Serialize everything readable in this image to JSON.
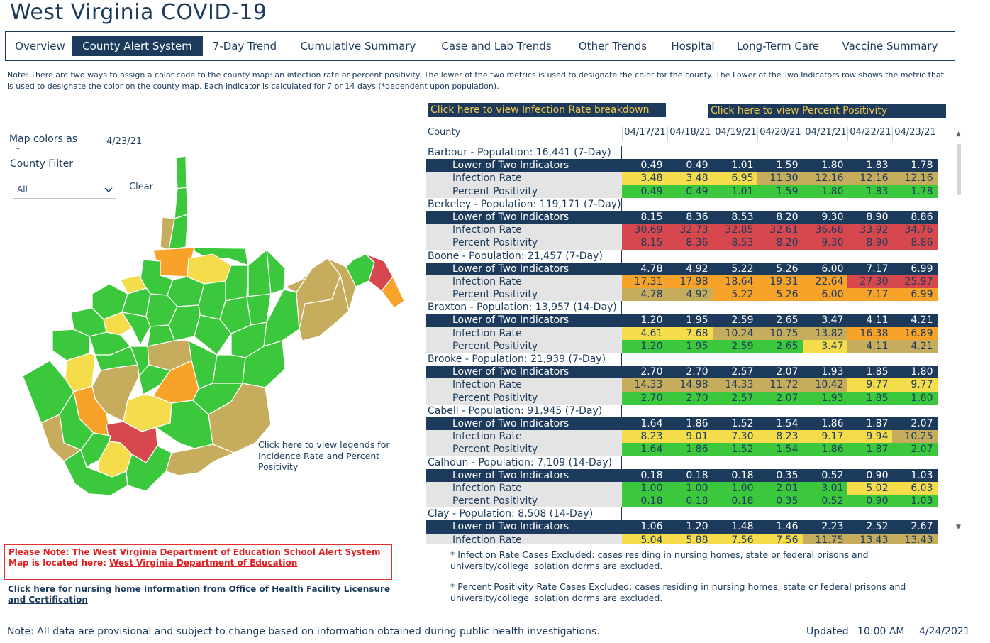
{
  "title": "West Virginia COVID-19",
  "tabs": [
    {
      "label": "Overview",
      "active": false
    },
    {
      "label": "County Alert System",
      "active": true
    },
    {
      "label": "7-Day Trend",
      "active": false
    },
    {
      "label": "Cumulative Summary",
      "active": false
    },
    {
      "label": "Case and Lab Trends",
      "active": false
    },
    {
      "label": "Other Trends",
      "active": false
    },
    {
      "label": "Hospital",
      "active": false
    },
    {
      "label": "Long-Term Care",
      "active": false
    },
    {
      "label": "Vaccine Summary",
      "active": false
    }
  ],
  "note": "Note: There are two ways to assign a color code to the county map: an infection rate or percent positivity. The lower of the two metrics is used to designate the color for the county. The Lower of the Two Indicators row shows the metric that is used to designate the color on the county map. Each indicator is calculated for 7 or 14 days (*dependent upon population).",
  "map_colors_label": "Map colors as of:",
  "map_date": "4/23/21",
  "county_filter_label": "County Filter",
  "county_filter_value": "All",
  "clear_label": "Clear",
  "legend_link": "Click here to view legends for Incidence Rate and Percent Positivity",
  "infection_rate_button": "Click here to view Infection Rate breakdown",
  "percent_positivity_button": "Click here to view Percent Positivity",
  "table": {
    "county_header": "County",
    "dates": [
      "04/17/21",
      "04/18/21",
      "04/19/21",
      "04/20/21",
      "04/21/21",
      "04/22/21",
      "04/23/21"
    ],
    "lower_label": "Lower of Two Indicators",
    "infection_label": "Infection Rate",
    "positivity_label": "Percent Positivity",
    "counties": [
      {
        "name": "Barbour - Population: 16,441 (7-Day)",
        "lower": [
          "0.49",
          "0.49",
          "1.01",
          "1.59",
          "1.80",
          "1.83",
          "1.78"
        ],
        "infection": [
          "3.48",
          "3.48",
          "6.95",
          "11.30",
          "12.16",
          "12.16",
          "12.16"
        ],
        "infection_colors": [
          "yellow",
          "yellow",
          "yellow",
          "khaki",
          "khaki",
          "khaki",
          "khaki"
        ],
        "positivity": [
          "0.49",
          "0.49",
          "1.01",
          "1.59",
          "1.80",
          "1.83",
          "1.78"
        ],
        "positivity_colors": [
          "green",
          "green",
          "green",
          "green",
          "green",
          "green",
          "green"
        ]
      },
      {
        "name": "Berkeley - Population: 119,171 (7-Day)",
        "lower": [
          "8.15",
          "8.36",
          "8.53",
          "8.20",
          "9.30",
          "8.90",
          "8.86"
        ],
        "infection": [
          "30.69",
          "32.73",
          "32.85",
          "32.61",
          "36.68",
          "33.92",
          "34.76"
        ],
        "infection_colors": [
          "red",
          "red",
          "red",
          "red",
          "red",
          "red",
          "red"
        ],
        "positivity": [
          "8.15",
          "8.36",
          "8.53",
          "8.20",
          "9.30",
          "8.90",
          "8.86"
        ],
        "positivity_colors": [
          "red",
          "red",
          "red",
          "red",
          "red",
          "red",
          "red"
        ]
      },
      {
        "name": "Boone - Population: 21,457 (7-Day)",
        "lower": [
          "4.78",
          "4.92",
          "5.22",
          "5.26",
          "6.00",
          "7.17",
          "6.99"
        ],
        "infection": [
          "17.31",
          "17.98",
          "18.64",
          "19.31",
          "22.64",
          "27.30",
          "25.97"
        ],
        "infection_colors": [
          "orange",
          "orange",
          "orange",
          "orange",
          "orange",
          "red",
          "red"
        ],
        "positivity": [
          "4.78",
          "4.92",
          "5.22",
          "5.26",
          "6.00",
          "7.17",
          "6.99"
        ],
        "positivity_colors": [
          "khaki",
          "khaki",
          "orange",
          "orange",
          "orange",
          "orange",
          "orange"
        ]
      },
      {
        "name": "Braxton - Population: 13,957 (14-Day)",
        "lower": [
          "1.20",
          "1.95",
          "2.59",
          "2.65",
          "3.47",
          "4.11",
          "4.21"
        ],
        "infection": [
          "4.61",
          "7.68",
          "10.24",
          "10.75",
          "13.82",
          "16.38",
          "16.89"
        ],
        "infection_colors": [
          "yellow",
          "yellow",
          "khaki",
          "khaki",
          "khaki",
          "orange",
          "orange"
        ],
        "positivity": [
          "1.20",
          "1.95",
          "2.59",
          "2.65",
          "3.47",
          "4.11",
          "4.21"
        ],
        "positivity_colors": [
          "green",
          "green",
          "green",
          "green",
          "yellow",
          "khaki",
          "khaki"
        ]
      },
      {
        "name": "Brooke - Population: 21,939 (7-Day)",
        "lower": [
          "2.70",
          "2.70",
          "2.57",
          "2.07",
          "1.93",
          "1.85",
          "1.80"
        ],
        "infection": [
          "14.33",
          "14.98",
          "14.33",
          "11.72",
          "10.42",
          "9.77",
          "9.77"
        ],
        "infection_colors": [
          "khaki",
          "khaki",
          "khaki",
          "khaki",
          "khaki",
          "yellow",
          "yellow"
        ],
        "positivity": [
          "2.70",
          "2.70",
          "2.57",
          "2.07",
          "1.93",
          "1.85",
          "1.80"
        ],
        "positivity_colors": [
          "green",
          "green",
          "green",
          "green",
          "green",
          "green",
          "green"
        ]
      },
      {
        "name": "Cabell - Population: 91,945 (7-Day)",
        "lower": [
          "1.64",
          "1.86",
          "1.52",
          "1.54",
          "1.86",
          "1.87",
          "2.07"
        ],
        "infection": [
          "8.23",
          "9.01",
          "7.30",
          "8.23",
          "9.17",
          "9.94",
          "10.25"
        ],
        "infection_colors": [
          "yellow",
          "yellow",
          "yellow",
          "yellow",
          "yellow",
          "yellow",
          "khaki"
        ],
        "positivity": [
          "1.64",
          "1.86",
          "1.52",
          "1.54",
          "1.86",
          "1.87",
          "2.07"
        ],
        "positivity_colors": [
          "green",
          "green",
          "green",
          "green",
          "green",
          "green",
          "green"
        ]
      },
      {
        "name": "Calhoun - Population: 7,109 (14-Day)",
        "lower": [
          "0.18",
          "0.18",
          "0.18",
          "0.35",
          "0.52",
          "0.90",
          "1.03"
        ],
        "infection": [
          "1.00",
          "1.00",
          "1.00",
          "2.01",
          "3.01",
          "5.02",
          "6.03"
        ],
        "infection_colors": [
          "green",
          "green",
          "green",
          "green",
          "green",
          "yellow",
          "yellow"
        ],
        "positivity": [
          "0.18",
          "0.18",
          "0.18",
          "0.35",
          "0.52",
          "0.90",
          "1.03"
        ],
        "positivity_colors": [
          "green",
          "green",
          "green",
          "green",
          "green",
          "green",
          "green"
        ]
      },
      {
        "name": "Clay - Population: 8,508 (14-Day)",
        "lower": [
          "1.06",
          "1.20",
          "1.48",
          "1.46",
          "2.23",
          "2.52",
          "2.67"
        ],
        "infection": [
          "5.04",
          "5.88",
          "7.56",
          "7.56",
          "11.75",
          "13.43",
          "13.43"
        ],
        "infection_colors": [
          "yellow",
          "yellow",
          "yellow",
          "yellow",
          "khaki",
          "khaki",
          "khaki"
        ],
        "positivity": [],
        "positivity_colors": []
      }
    ]
  },
  "notice_text": "Please Note: The West Virginia Department of Education School Alert System Map is located here: ",
  "notice_link": "West Virginia Department of Education",
  "nursing_text": "Click here for nursing home information from ",
  "nursing_link": "Office of Health Facility Licensure and Certification",
  "exclusion_infection": "* Infection Rate Cases Excluded: cases residing in nursing homes, state or federal prisons and university/college isolation dorms are excluded.",
  "exclusion_positivity": "* Percent Positivity Rate Cases Excluded: cases residing in nursing homes, state or federal prisons and university/college isolation dorms are excluded.",
  "footer_note": "Note: All data are provisional and subject to change based on information obtained during public health investigations.",
  "updated_label": "Updated",
  "updated_time": "10:00 AM",
  "updated_date": "4/24/2021",
  "colors": {
    "navy": "#1b3a5c",
    "green": "#3cc83c",
    "yellow": "#f5dc4a",
    "khaki": "#c6ad5e",
    "orange": "#f7a229",
    "red": "#d7484e",
    "accent_text": "#f2c84b",
    "alert": "#e02020"
  }
}
